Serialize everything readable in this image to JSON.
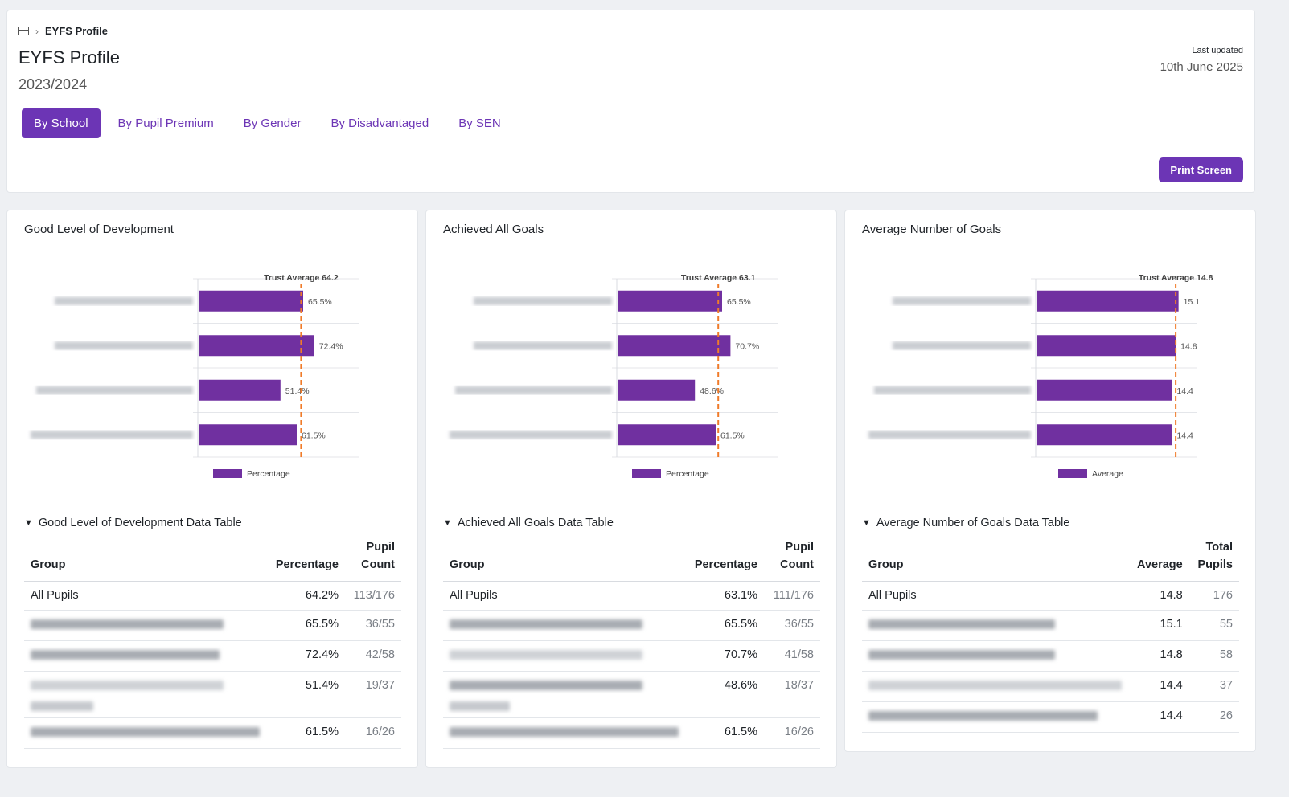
{
  "breadcrumb": {
    "current": "EYFS Profile",
    "icon": "table-grid-icon"
  },
  "page": {
    "title": "EYFS Profile",
    "year": "2023/2024"
  },
  "last_updated": {
    "label": "Last updated",
    "date": "10th June 2025"
  },
  "tabs": [
    {
      "label": "By School",
      "active": true
    },
    {
      "label": "By Pupil Premium",
      "active": false
    },
    {
      "label": "By Gender",
      "active": false
    },
    {
      "label": "By Disadvantaged",
      "active": false
    },
    {
      "label": "By SEN",
      "active": false
    }
  ],
  "print_button": "Print Screen",
  "colors": {
    "accent": "#6c35b5",
    "bar": "#7030a0",
    "trust_line": "#f07b2a"
  },
  "cards": [
    {
      "title": "Good Level of Development",
      "table_title": "Good Level of Development Data Table",
      "columns": [
        "Group",
        "Percentage",
        "Pupil Count"
      ],
      "rows": [
        {
          "group": "All Pupils",
          "value": "64.2%",
          "count": "113/176"
        },
        {
          "group": "",
          "value": "65.5%",
          "count": "36/55"
        },
        {
          "group": "",
          "value": "72.4%",
          "count": "42/58"
        },
        {
          "group": "",
          "value": "51.4%",
          "count": "19/37"
        },
        {
          "group": "",
          "value": "61.5%",
          "count": "16/26"
        }
      ]
    },
    {
      "title": "Achieved All Goals",
      "table_title": "Achieved All Goals Data Table",
      "columns": [
        "Group",
        "Percentage",
        "Pupil Count"
      ],
      "rows": [
        {
          "group": "All Pupils",
          "value": "63.1%",
          "count": "111/176"
        },
        {
          "group": "",
          "value": "65.5%",
          "count": "36/55"
        },
        {
          "group": "",
          "value": "70.7%",
          "count": "41/58"
        },
        {
          "group": "",
          "value": "48.6%",
          "count": "18/37"
        },
        {
          "group": "",
          "value": "61.5%",
          "count": "16/26"
        }
      ]
    },
    {
      "title": "Average Number of Goals",
      "table_title": "Average Number of Goals Data Table",
      "columns": [
        "Group",
        "Average",
        "Total Pupils"
      ],
      "rows": [
        {
          "group": "All Pupils",
          "value": "14.8",
          "count": "176"
        },
        {
          "group": "",
          "value": "15.1",
          "count": "55"
        },
        {
          "group": "",
          "value": "14.8",
          "count": "58"
        },
        {
          "group": "",
          "value": "14.4",
          "count": "37"
        },
        {
          "group": "",
          "value": "14.4",
          "count": "26"
        }
      ]
    }
  ],
  "chart_data": [
    {
      "type": "bar",
      "orientation": "horizontal",
      "categories": [
        "",
        "",
        "",
        ""
      ],
      "series": [
        {
          "name": "Percentage",
          "values": [
            65.5,
            72.4,
            51.4,
            61.5
          ]
        }
      ],
      "data_labels": [
        "65.5%",
        "72.4%",
        "51.4%",
        "61.5%"
      ],
      "reference_line": {
        "label": "Trust Average 64.2",
        "value": 64.2
      },
      "xlim": [
        0,
        100
      ],
      "legend": "bottom"
    },
    {
      "type": "bar",
      "orientation": "horizontal",
      "categories": [
        "",
        "",
        "",
        ""
      ],
      "series": [
        {
          "name": "Percentage",
          "values": [
            65.5,
            70.7,
            48.6,
            61.5
          ]
        }
      ],
      "data_labels": [
        "65.5%",
        "70.7%",
        "48.6%",
        "61.5%"
      ],
      "reference_line": {
        "label": "Trust Average 63.1",
        "value": 63.1
      },
      "xlim": [
        0,
        100
      ],
      "legend": "bottom"
    },
    {
      "type": "bar",
      "orientation": "horizontal",
      "categories": [
        "",
        "",
        "",
        ""
      ],
      "series": [
        {
          "name": "Average",
          "values": [
            15.1,
            14.8,
            14.4,
            14.4
          ]
        }
      ],
      "data_labels": [
        "15.1",
        "14.8",
        "14.4",
        "14.4"
      ],
      "reference_line": {
        "label": "Trust Average 14.8",
        "value": 14.8
      },
      "xlim": [
        0,
        17
      ],
      "legend": "bottom"
    }
  ]
}
